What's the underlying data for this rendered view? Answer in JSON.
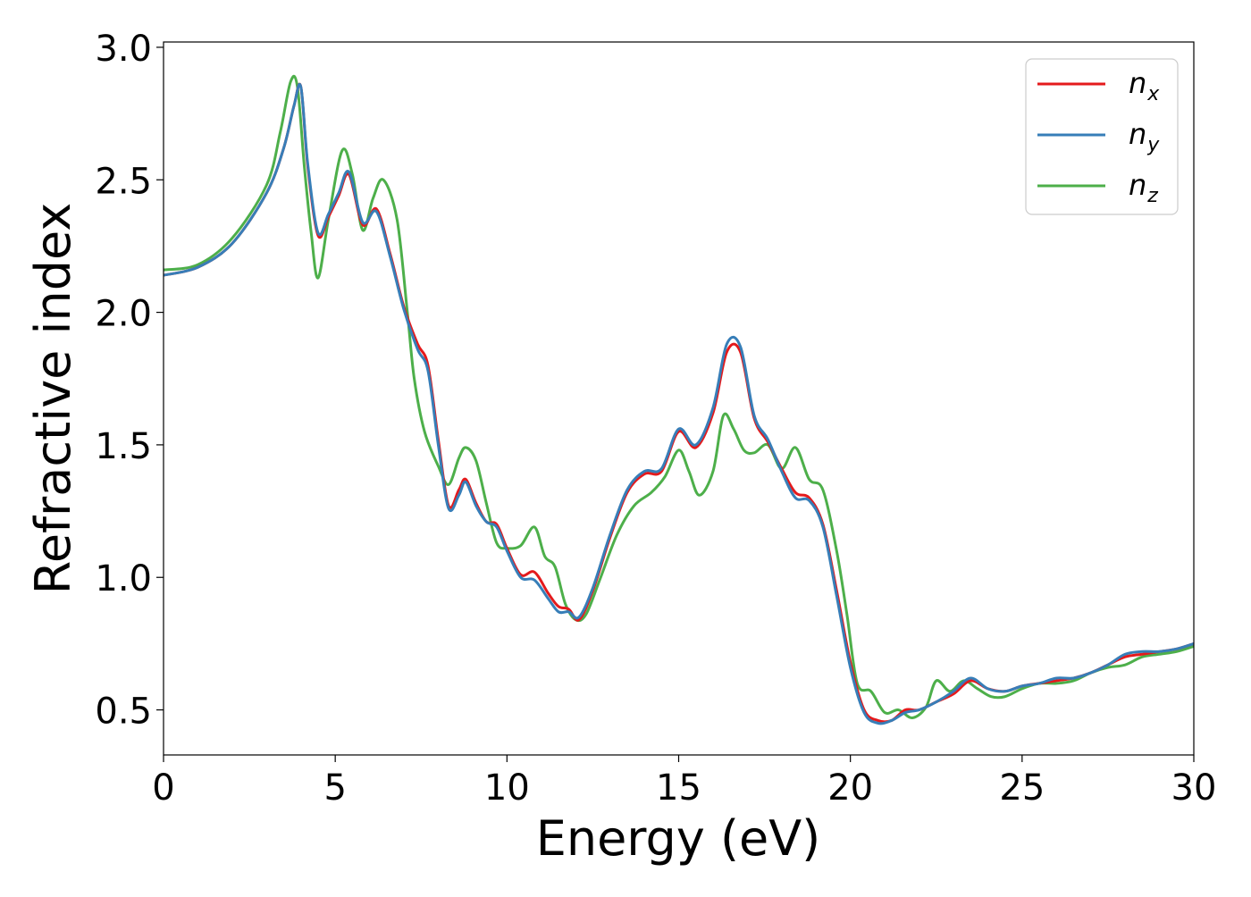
{
  "chart_data": {
    "type": "line",
    "title": "",
    "xlabel": "Energy (eV)",
    "ylabel": "Refractive index",
    "xlim": [
      0,
      30
    ],
    "ylim": [
      0.33,
      3.02
    ],
    "xticks": [
      0,
      5,
      10,
      15,
      20,
      25,
      30
    ],
    "xtick_labels": [
      "0",
      "5",
      "10",
      "15",
      "20",
      "25",
      "30"
    ],
    "yticks": [
      0.5,
      1.0,
      1.5,
      2.0,
      2.5,
      3.0
    ],
    "ytick_labels": [
      "0.5",
      "1.0",
      "1.5",
      "2.0",
      "2.5",
      "3.0"
    ],
    "grid": false,
    "legend_position": "top-right",
    "series": [
      {
        "name": "n_x",
        "legend_base": "n",
        "legend_sub": "x",
        "color": "#e41a1c",
        "x": [
          0,
          1,
          2,
          3,
          3.5,
          3.8,
          4.0,
          4.2,
          4.5,
          4.8,
          5.1,
          5.4,
          5.8,
          6.2,
          6.6,
          7.0,
          7.4,
          7.7,
          8.0,
          8.3,
          8.6,
          8.8,
          9.1,
          9.4,
          9.7,
          10.0,
          10.4,
          10.8,
          11.2,
          11.5,
          11.8,
          12.1,
          12.5,
          13.0,
          13.5,
          14.0,
          14.5,
          15.0,
          15.5,
          16.0,
          16.4,
          16.8,
          17.2,
          17.6,
          18.0,
          18.4,
          18.8,
          19.2,
          19.6,
          20.0,
          20.4,
          20.8,
          21.2,
          21.6,
          22.0,
          22.5,
          23.0,
          23.5,
          24.0,
          24.5,
          25.0,
          25.5,
          26.0,
          26.5,
          27.0,
          27.5,
          28.0,
          28.5,
          29.0,
          29.5,
          30.0
        ],
        "y": [
          2.14,
          2.17,
          2.26,
          2.45,
          2.62,
          2.78,
          2.85,
          2.55,
          2.29,
          2.36,
          2.44,
          2.52,
          2.33,
          2.39,
          2.22,
          2.02,
          1.88,
          1.8,
          1.52,
          1.27,
          1.33,
          1.37,
          1.28,
          1.21,
          1.2,
          1.11,
          1.01,
          1.02,
          0.94,
          0.89,
          0.88,
          0.84,
          0.95,
          1.15,
          1.32,
          1.39,
          1.4,
          1.55,
          1.49,
          1.62,
          1.85,
          1.85,
          1.6,
          1.51,
          1.41,
          1.32,
          1.3,
          1.2,
          0.95,
          0.68,
          0.5,
          0.46,
          0.46,
          0.5,
          0.5,
          0.53,
          0.56,
          0.61,
          0.58,
          0.57,
          0.59,
          0.6,
          0.61,
          0.62,
          0.64,
          0.67,
          0.7,
          0.71,
          0.72,
          0.73,
          0.75
        ]
      },
      {
        "name": "n_y",
        "legend_base": "n",
        "legend_sub": "y",
        "color": "#377eb8",
        "x": [
          0,
          1,
          2,
          3,
          3.5,
          3.8,
          4.0,
          4.2,
          4.5,
          4.8,
          5.1,
          5.4,
          5.8,
          6.2,
          6.6,
          7.0,
          7.4,
          7.7,
          8.0,
          8.3,
          8.6,
          8.8,
          9.1,
          9.4,
          9.7,
          10.0,
          10.4,
          10.8,
          11.2,
          11.5,
          11.8,
          12.1,
          12.5,
          13.0,
          13.5,
          14.0,
          14.5,
          15.0,
          15.5,
          16.0,
          16.4,
          16.8,
          17.2,
          17.6,
          18.0,
          18.4,
          18.8,
          19.2,
          19.6,
          20.0,
          20.4,
          20.8,
          21.2,
          21.6,
          22.0,
          22.5,
          23.0,
          23.5,
          24.0,
          24.5,
          25.0,
          25.5,
          26.0,
          26.5,
          27.0,
          27.5,
          28.0,
          28.5,
          29.0,
          29.5,
          30.0
        ],
        "y": [
          2.14,
          2.17,
          2.26,
          2.45,
          2.62,
          2.78,
          2.85,
          2.56,
          2.3,
          2.37,
          2.45,
          2.53,
          2.34,
          2.38,
          2.21,
          2.01,
          1.86,
          1.78,
          1.5,
          1.26,
          1.31,
          1.36,
          1.27,
          1.21,
          1.19,
          1.1,
          1.0,
          0.99,
          0.92,
          0.87,
          0.87,
          0.85,
          0.96,
          1.16,
          1.33,
          1.4,
          1.41,
          1.56,
          1.5,
          1.64,
          1.88,
          1.87,
          1.61,
          1.52,
          1.4,
          1.3,
          1.29,
          1.19,
          0.93,
          0.66,
          0.49,
          0.45,
          0.46,
          0.49,
          0.5,
          0.53,
          0.57,
          0.62,
          0.58,
          0.57,
          0.59,
          0.6,
          0.62,
          0.62,
          0.64,
          0.67,
          0.71,
          0.72,
          0.72,
          0.73,
          0.75
        ]
      },
      {
        "name": "n_z",
        "legend_base": "n",
        "legend_sub": "z",
        "color": "#4daf4a",
        "x": [
          0,
          1,
          2,
          3,
          3.4,
          3.7,
          3.9,
          4.1,
          4.3,
          4.5,
          4.8,
          5.2,
          5.5,
          5.8,
          6.1,
          6.4,
          6.8,
          7.1,
          7.3,
          7.6,
          8.0,
          8.3,
          8.6,
          8.8,
          9.1,
          9.4,
          9.7,
          10.0,
          10.4,
          10.8,
          11.1,
          11.4,
          11.7,
          12.0,
          12.3,
          12.7,
          13.2,
          13.7,
          14.2,
          14.6,
          15.0,
          15.3,
          15.6,
          16.0,
          16.3,
          16.6,
          16.9,
          17.2,
          17.6,
          18.0,
          18.4,
          18.8,
          19.2,
          19.6,
          19.9,
          20.2,
          20.6,
          21.0,
          21.4,
          21.8,
          22.2,
          22.5,
          22.9,
          23.3,
          23.7,
          24.1,
          24.5,
          25.0,
          25.5,
          26.0,
          26.5,
          27.0,
          27.5,
          28.0,
          28.5,
          29.0,
          29.5,
          30.0
        ],
        "y": [
          2.16,
          2.18,
          2.28,
          2.48,
          2.68,
          2.87,
          2.85,
          2.55,
          2.3,
          2.13,
          2.35,
          2.61,
          2.52,
          2.31,
          2.43,
          2.5,
          2.35,
          2.0,
          1.75,
          1.55,
          1.42,
          1.35,
          1.45,
          1.49,
          1.44,
          1.28,
          1.13,
          1.11,
          1.12,
          1.19,
          1.08,
          1.04,
          0.9,
          0.84,
          0.86,
          0.99,
          1.16,
          1.27,
          1.32,
          1.38,
          1.48,
          1.4,
          1.31,
          1.4,
          1.61,
          1.56,
          1.48,
          1.47,
          1.5,
          1.41,
          1.49,
          1.37,
          1.33,
          1.1,
          0.86,
          0.6,
          0.57,
          0.49,
          0.5,
          0.47,
          0.51,
          0.61,
          0.57,
          0.61,
          0.58,
          0.55,
          0.55,
          0.58,
          0.6,
          0.6,
          0.61,
          0.64,
          0.66,
          0.67,
          0.7,
          0.71,
          0.72,
          0.74
        ]
      }
    ]
  }
}
